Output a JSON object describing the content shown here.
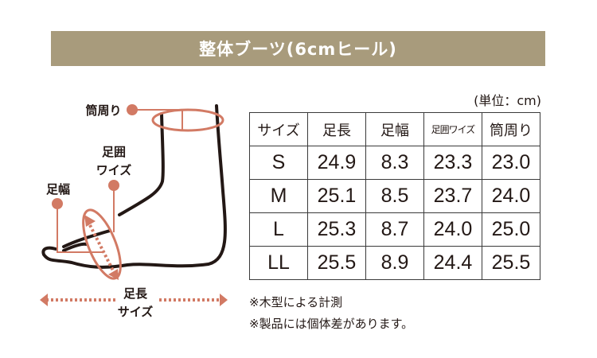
{
  "title": "整体ブーツ(6cmヒール)",
  "unit": "(単位：cm)",
  "colors": {
    "banner": "#a89b7c",
    "accent": "#d27a64",
    "line": "#231815"
  },
  "diagram": {
    "labels": {
      "shaft_circumference": "筒周り",
      "foot_girth_line1": "足囲",
      "foot_girth_line2": "ワイズ",
      "foot_width": "足幅",
      "foot_length_line1": "足長",
      "foot_length_line2": "サイズ"
    }
  },
  "table": {
    "headers": [
      "サイズ",
      "足長",
      "足幅",
      "足囲ワイズ",
      "筒周り"
    ],
    "rows": [
      [
        "S",
        "24.9",
        "8.3",
        "23.3",
        "23.0"
      ],
      [
        "M",
        "25.1",
        "8.5",
        "23.7",
        "24.0"
      ],
      [
        "L",
        "25.3",
        "8.7",
        "24.0",
        "25.0"
      ],
      [
        "LL",
        "25.5",
        "8.9",
        "24.4",
        "25.5"
      ]
    ]
  },
  "notes": [
    "※木型による計測",
    "※製品には個体差があります。"
  ]
}
